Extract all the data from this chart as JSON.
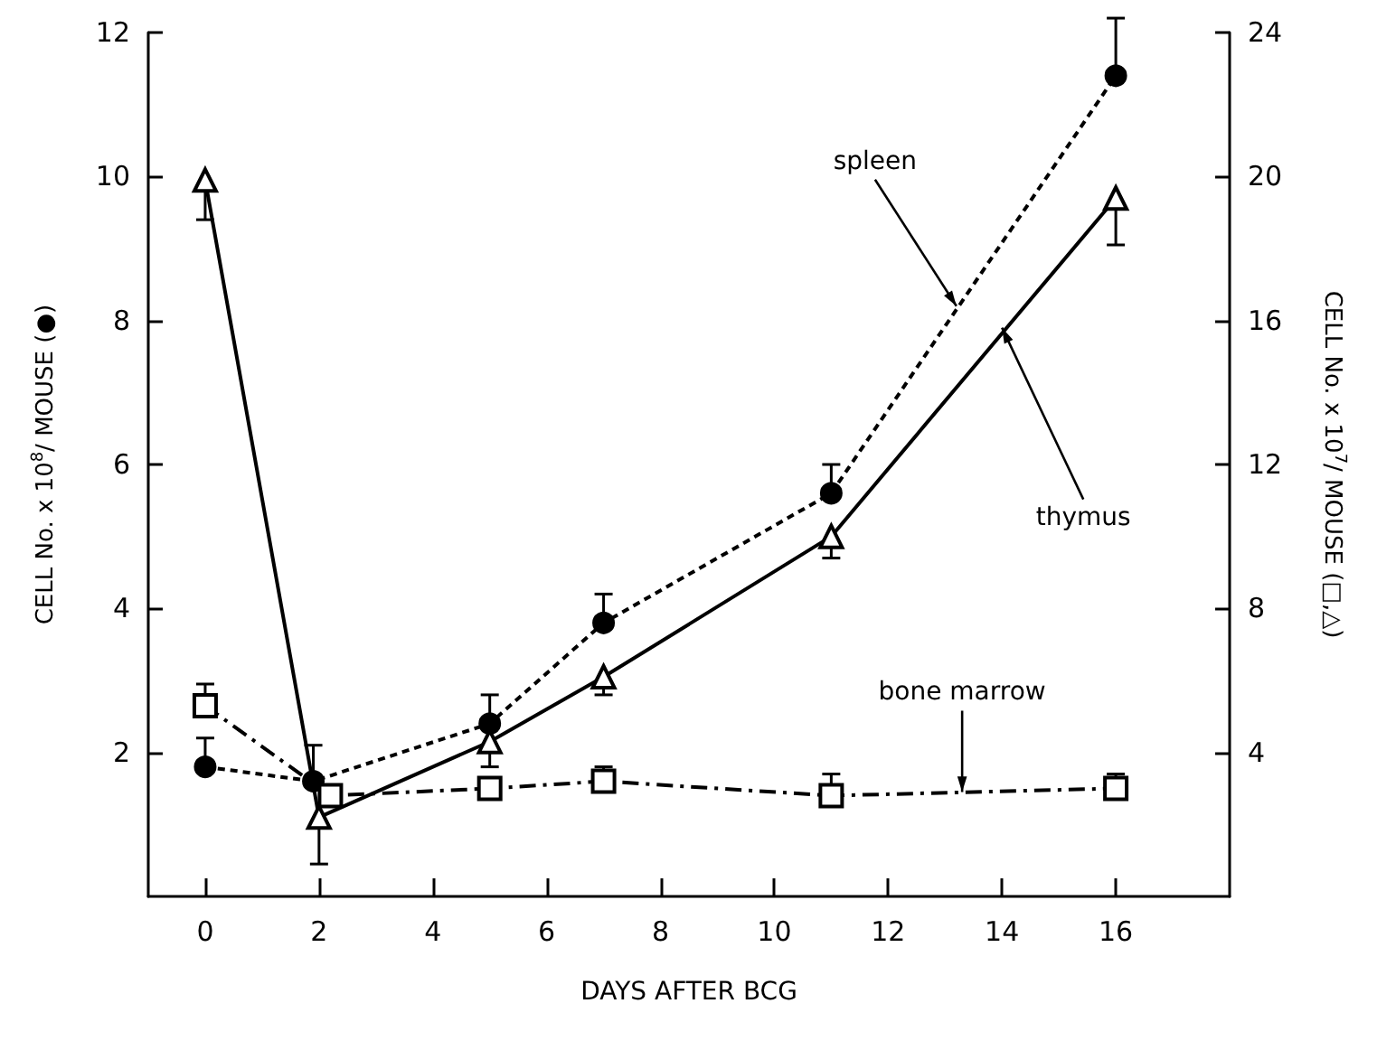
{
  "chart_data": {
    "type": "line",
    "xlabel": "DAYS AFTER BCG",
    "ylabel": "CELL No. x 10$^{8}$/ MOUSE (●)",
    "y2label": "CELL No. x 10$^{7}$/ MOUSE (□,△)",
    "xlim": [
      -1,
      18
    ],
    "xticks": [
      0,
      2,
      4,
      6,
      8,
      10,
      12,
      14,
      16
    ],
    "ylim": [
      0,
      12
    ],
    "yticks": [
      2,
      4,
      6,
      8,
      10,
      12
    ],
    "y2lim": [
      0,
      24
    ],
    "y2ticks": [
      4,
      8,
      12,
      16,
      20,
      24
    ],
    "series": [
      {
        "color": "#000000",
        "marker": "circle",
        "line_style": "dotted",
        "x": [
          0,
          1.9,
          5,
          7,
          11,
          16
        ],
        "values": [
          1.8,
          1.6,
          2.4,
          3.8,
          5.6,
          11.4
        ],
        "errors": [
          [
            1.8,
            2.2
          ],
          [
            1.6,
            2.1
          ],
          [
            2.4,
            2.8
          ],
          [
            3.8,
            4.2
          ],
          [
            5.6,
            6.0
          ],
          [
            11.4,
            12.2
          ]
        ]
      },
      {
        "color": "#000000",
        "marker": "triangle",
        "line_style": "solid",
        "axis": "y2",
        "x": [
          0,
          2,
          5,
          7,
          11,
          16
        ],
        "values": [
          19.9,
          2.2,
          4.3,
          6.1,
          10.0,
          19.4
        ],
        "errors": [
          [
            18.8,
            19.9
          ],
          [
            0.9,
            2.2
          ],
          [
            3.6,
            4.3
          ],
          [
            5.6,
            6.1
          ],
          [
            9.4,
            10.0
          ],
          [
            18.1,
            19.4
          ]
        ]
      },
      {
        "color": "#000000",
        "marker": "square",
        "line_style": "dashed",
        "axis": "y2",
        "x": [
          0,
          2.2,
          5,
          7,
          11,
          16
        ],
        "values": [
          5.3,
          2.8,
          3.0,
          3.2,
          2.8,
          3.0
        ],
        "errors": [
          [
            5.3,
            5.9
          ],
          null,
          null,
          [
            3.2,
            3.6
          ],
          [
            2.8,
            3.4
          ],
          [
            3.0,
            3.4
          ]
        ]
      }
    ],
    "annotations": [
      {
        "text": "spleen",
        "x": 13.2,
        "y": 8.2
      },
      {
        "text": "thymus",
        "x": 14.0,
        "y": 7.9
      },
      {
        "text": "bone marrow",
        "x": 13.3,
        "y": 1.45
      }
    ]
  }
}
